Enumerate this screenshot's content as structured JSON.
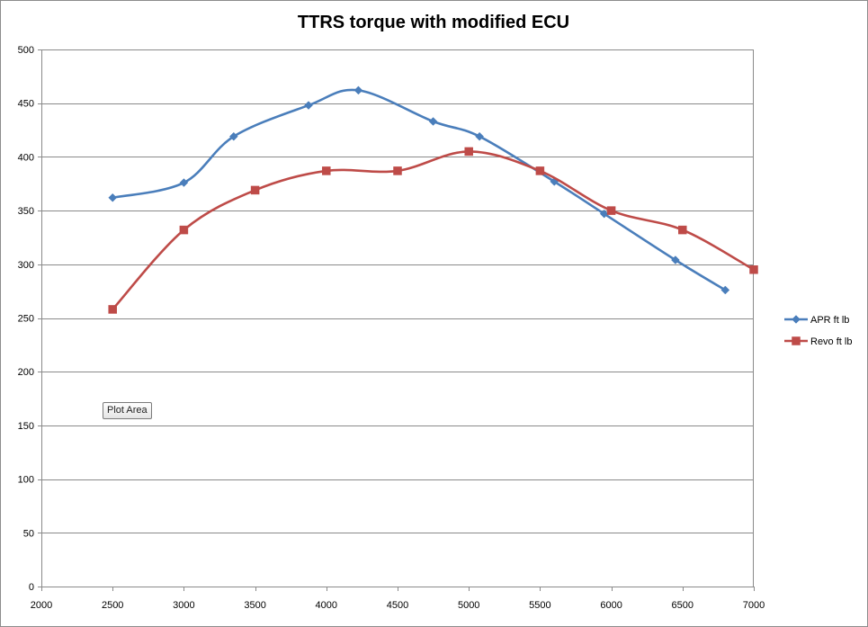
{
  "chart_data": {
    "type": "line",
    "title": "TTRS torque with modified ECU",
    "xlabel": "",
    "ylabel": "",
    "xlim": [
      2000,
      7000
    ],
    "ylim": [
      0,
      500
    ],
    "x_ticks": [
      2000,
      2500,
      3000,
      3500,
      4000,
      4500,
      5000,
      5500,
      6000,
      6500,
      7000
    ],
    "y_ticks": [
      0,
      50,
      100,
      150,
      200,
      250,
      300,
      350,
      400,
      450,
      500
    ],
    "grid": "horizontal",
    "legend_position": "right",
    "smoothed": true,
    "series": [
      {
        "name": "APR ft lb",
        "color": "#4a7ebb",
        "marker": "diamond",
        "points": [
          {
            "x": 2500,
            "y": 362
          },
          {
            "x": 3000,
            "y": 376
          },
          {
            "x": 3350,
            "y": 419
          },
          {
            "x": 3875,
            "y": 448
          },
          {
            "x": 4225,
            "y": 462
          },
          {
            "x": 4750,
            "y": 433
          },
          {
            "x": 5075,
            "y": 419
          },
          {
            "x": 5600,
            "y": 377
          },
          {
            "x": 5950,
            "y": 347
          },
          {
            "x": 6450,
            "y": 304
          },
          {
            "x": 6800,
            "y": 276
          }
        ]
      },
      {
        "name": "Revo ft lb",
        "color": "#be4b48",
        "marker": "square",
        "points": [
          {
            "x": 2500,
            "y": 258
          },
          {
            "x": 3000,
            "y": 332
          },
          {
            "x": 3500,
            "y": 369
          },
          {
            "x": 4000,
            "y": 387
          },
          {
            "x": 4500,
            "y": 387
          },
          {
            "x": 5000,
            "y": 405
          },
          {
            "x": 5500,
            "y": 387
          },
          {
            "x": 6000,
            "y": 350
          },
          {
            "x": 6500,
            "y": 332
          },
          {
            "x": 7000,
            "y": 295
          }
        ]
      }
    ]
  },
  "tooltip": {
    "text": "Plot Area"
  }
}
